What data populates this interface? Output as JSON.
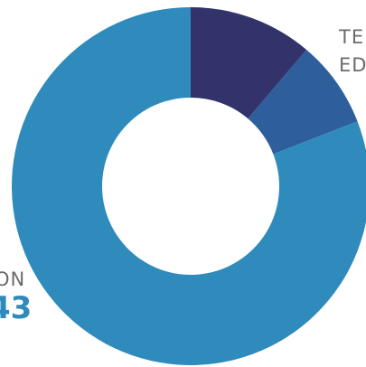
{
  "chart_data": {
    "type": "pie",
    "style": "donut",
    "slices": [
      {
        "label": "",
        "value": 11.2,
        "color": "#32336a"
      },
      {
        "label": "",
        "value": 7.9,
        "color": "#2e5e9c"
      },
      {
        "label": "",
        "value": 80.9,
        "color": "#2e8bbb"
      }
    ],
    "labels": {
      "right_line1": "TE",
      "right_line2": "ED",
      "left_line1": "ON",
      "left_value": "43"
    },
    "colors": {
      "label_text": "#6b6b6b",
      "value_text": "#2e8bbb"
    }
  }
}
